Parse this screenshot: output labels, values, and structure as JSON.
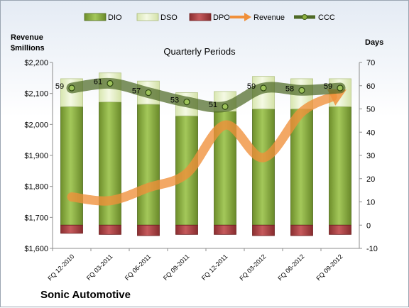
{
  "chart_data": {
    "type": "bar",
    "title": "Quarterly Periods",
    "company": "Sonic Automotive",
    "left_axis_label_line1": "Revenue",
    "left_axis_label_line2": "$millions",
    "right_axis_label": "Days",
    "categories": [
      "FQ 12-2010",
      "FQ 03-2011",
      "FQ 06-2011",
      "FQ 09-2011",
      "FQ 12-2011",
      "FQ 03-2012",
      "FQ 06-2012",
      "FQ 09-2012"
    ],
    "left_axis": {
      "min": 1600,
      "max": 2200,
      "step": 100,
      "ticks": [
        "$1,600",
        "$1,700",
        "$1,800",
        "$1,900",
        "$2,000",
        "$2,100",
        "$2,200"
      ]
    },
    "right_axis": {
      "min": -10,
      "max": 70,
      "step": 10,
      "ticks": [
        "-10",
        "0",
        "10",
        "20",
        "30",
        "40",
        "50",
        "60",
        "70"
      ]
    },
    "legend": {
      "position": "top",
      "items": [
        "DIO",
        "DSO",
        "DPO",
        "Revenue",
        "CCC"
      ]
    },
    "series": [
      {
        "name": "DIO",
        "axis": "right",
        "values": [
          51,
          53,
          52,
          47,
          49,
          50,
          50,
          51
        ]
      },
      {
        "name": "DSO",
        "axis": "right",
        "values": [
          12,
          12.5,
          10,
          10,
          8.5,
          14,
          13,
          12
        ]
      },
      {
        "name": "DPO",
        "axis": "right",
        "values": [
          -3.5,
          -4,
          -4.5,
          -4,
          -4,
          -4.5,
          -4.5,
          -4
        ]
      },
      {
        "name": "Revenue",
        "axis": "left",
        "values": [
          1766,
          1754,
          1796,
          1842,
          1998,
          1893,
          2040,
          2102
        ]
      },
      {
        "name": "CCC",
        "axis": "right",
        "values": [
          59,
          61,
          57,
          53,
          51,
          59,
          58,
          59
        ]
      }
    ],
    "data_labels": [
      "59",
      "61",
      "57",
      "53",
      "51",
      "59",
      "58",
      "59"
    ],
    "colors": {
      "DIO": "#8db040",
      "DIO_dark": "#4f6b1c",
      "DSO": "#e6f0c6",
      "DPO": "#b4484a",
      "DPO_dark": "#6e1f20",
      "Revenue": "#f0903a",
      "CCC": "#4e6a26"
    },
    "grid": false
  }
}
